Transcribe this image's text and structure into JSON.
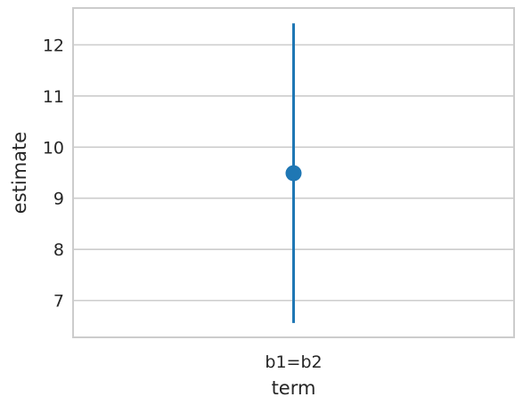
{
  "chart_data": {
    "type": "scatter",
    "xlabel": "term",
    "ylabel": "estimate",
    "categories": [
      "b1=b2"
    ],
    "ylim": [
      6.28,
      12.72
    ],
    "yticks": [
      7,
      8,
      9,
      10,
      11,
      12
    ],
    "grid": "horizontal",
    "series": [
      {
        "points": [
          {
            "x": "b1=b2",
            "y": 9.49,
            "lower": 6.56,
            "upper": 12.42
          }
        ]
      }
    ],
    "colors": {
      "series": "#1f77b4",
      "grid": "#cccccc",
      "frame": "#cccccc",
      "text": "#262626"
    }
  }
}
